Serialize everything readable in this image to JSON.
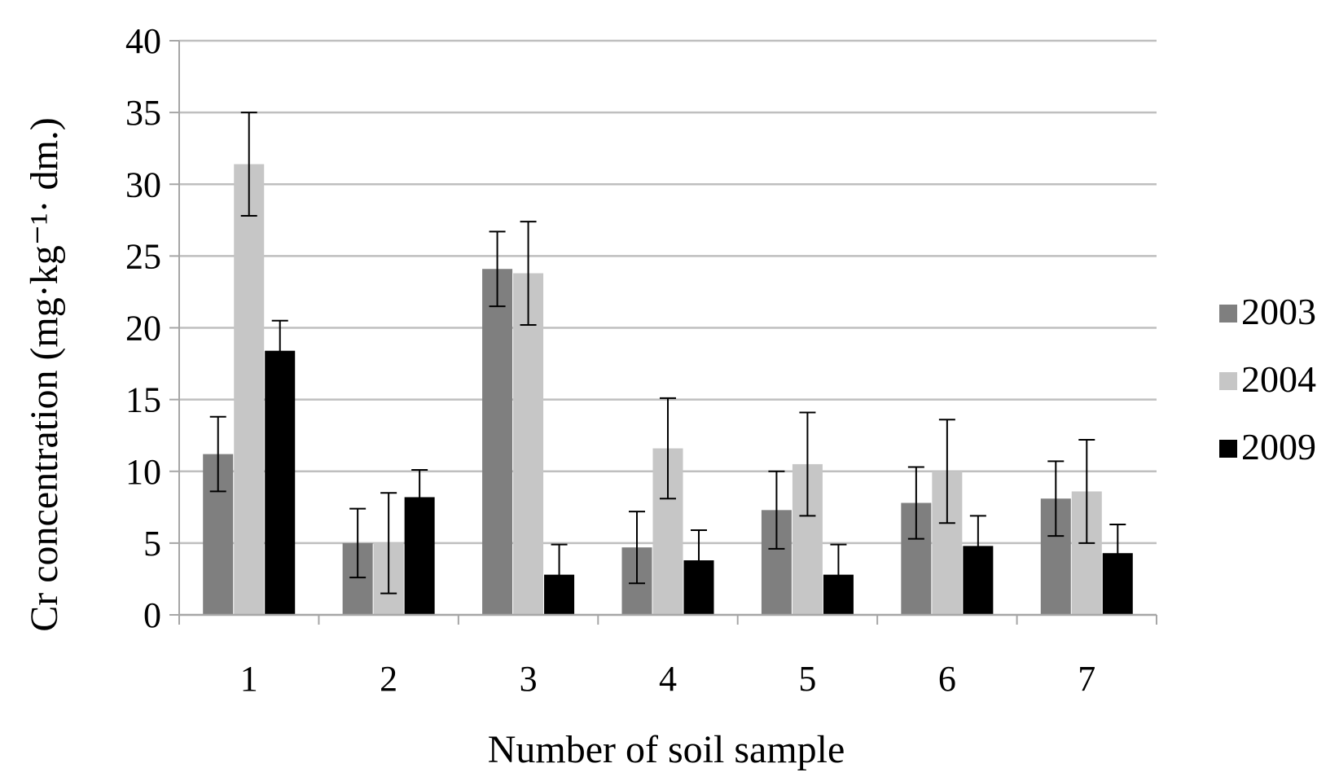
{
  "chart_data": {
    "type": "bar",
    "title": "",
    "xlabel": "Number of soil sample",
    "ylabel": "Cr concentration (mg·kg⁻¹· dm.)",
    "ylim": [
      0,
      40
    ],
    "yticks": [
      0,
      5,
      10,
      15,
      20,
      25,
      30,
      35,
      40
    ],
    "grid": true,
    "legend_position": "right",
    "categories": [
      "1",
      "2",
      "3",
      "4",
      "5",
      "6",
      "7"
    ],
    "series": [
      {
        "name": "2003",
        "color": "#7f7f7f",
        "values": [
          11.2,
          5.0,
          24.1,
          4.7,
          7.3,
          7.8,
          8.1
        ],
        "errors": [
          2.6,
          2.4,
          2.6,
          2.5,
          2.7,
          2.5,
          2.6
        ]
      },
      {
        "name": "2004",
        "color": "#c6c6c6",
        "values": [
          31.4,
          5.0,
          23.8,
          11.6,
          10.5,
          10.0,
          8.6
        ],
        "errors": [
          3.6,
          3.5,
          3.6,
          3.5,
          3.6,
          3.6,
          3.6
        ]
      },
      {
        "name": "2009",
        "color": "#000000",
        "values": [
          18.4,
          8.2,
          2.8,
          3.8,
          2.8,
          4.8,
          4.3
        ],
        "errors": [
          2.1,
          1.9,
          2.1,
          2.1,
          2.1,
          2.1,
          2.0
        ]
      }
    ]
  }
}
